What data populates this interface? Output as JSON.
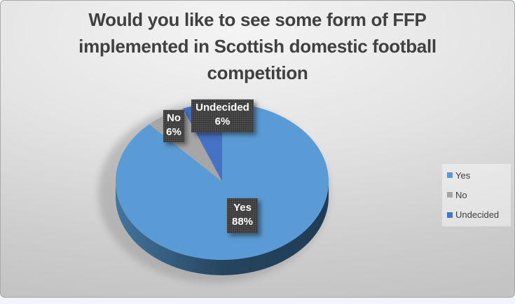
{
  "chart_data": {
    "type": "pie",
    "title": "Would you like to see some form of FFP implemented in Scottish domestic football competition",
    "effect": "3d",
    "legend_position": "right",
    "slices": [
      {
        "label": "Yes",
        "value": 88,
        "pct_label": "88%",
        "color": "#5B9BD5"
      },
      {
        "label": "No",
        "value": 6,
        "pct_label": "6%",
        "color": "#A6A6A6"
      },
      {
        "label": "Undecided",
        "value": 6,
        "pct_label": "6%",
        "color": "#4472C4"
      }
    ],
    "colors": {
      "title_text": "#404040",
      "label_box_bg": "#3B3B3B",
      "label_text": "#FFFFFF",
      "side_wall_dark": "#203C56",
      "side_wall_light": "#44749F",
      "legend_text": "#3F3F3F"
    }
  }
}
